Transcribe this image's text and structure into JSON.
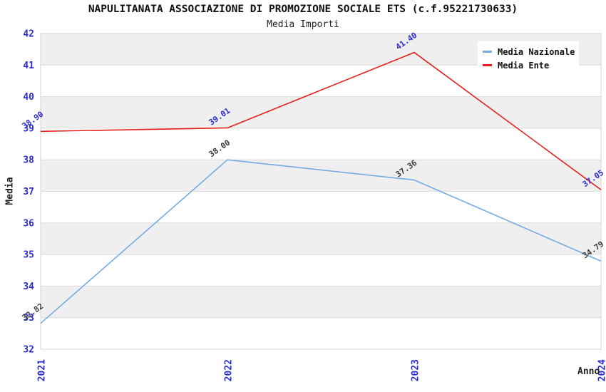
{
  "header": {
    "title": "NAPULITANATA ASSOCIAZIONE DI PROMOZIONE SOCIALE ETS (c.f.95221730633)",
    "subtitle": "Media Importi"
  },
  "chart_data": {
    "type": "line",
    "x": [
      "2021",
      "2022",
      "2023",
      "2024"
    ],
    "series": [
      {
        "name": "Media Nazionale",
        "color": "#74abe2",
        "label_color": "#3b3b3b",
        "values": [
          32.82,
          38.0,
          37.36,
          34.79
        ]
      },
      {
        "name": "Media Ente",
        "color": "#e4201b",
        "label_color": "#2b2bd0",
        "values": [
          38.9,
          39.01,
          41.4,
          37.05
        ]
      }
    ],
    "xlabel": "Anno",
    "ylabel": "Media",
    "ylim": [
      32,
      42
    ],
    "ytick_step": 1,
    "yticks": [
      32,
      33,
      34,
      35,
      36,
      37,
      38,
      39,
      40,
      41,
      42
    ],
    "grid": "horizontal-bands-alternating",
    "band_color": "#efefef",
    "gridline_color": "#dcdcdc",
    "plot_border_color": "#d4d4d4",
    "tick_label_color": "#2b2bd0",
    "point_labels_visible": true,
    "value_format": "2-decimals",
    "legend_position": "top-right"
  }
}
